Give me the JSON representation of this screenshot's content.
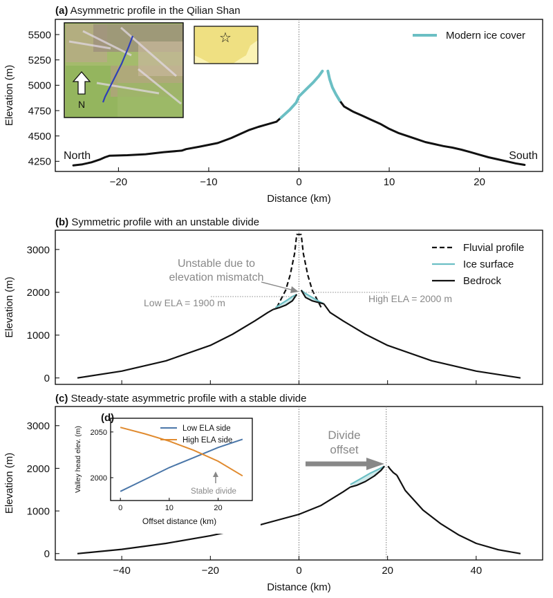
{
  "chart_data": [
    {
      "panel": "(a)",
      "title": "Asymmetric profile in the Qilian Shan",
      "type": "line",
      "xlabel": "Distance (km)",
      "ylabel": "Elevation (m)",
      "xlim": [
        -27,
        27
      ],
      "ylim": [
        4150,
        5650
      ],
      "xticks": [
        -20,
        -10,
        0,
        10,
        20
      ],
      "yticks": [
        4250,
        4500,
        4750,
        5000,
        5250,
        5500
      ],
      "annotations": [
        "North",
        "South"
      ],
      "inset_labels": [
        "N"
      ],
      "legend_position": "top-right",
      "series": [
        {
          "name": "",
          "color": "#111111",
          "x": [
            -25,
            -24,
            -23,
            -22,
            -21.5,
            -21,
            -19,
            -17,
            -15,
            -13,
            -12.5,
            -11,
            -9,
            -7.5,
            -6.5,
            -5.5,
            -4.5,
            -3.5,
            -2.5,
            -2
          ],
          "y": [
            4210,
            4220,
            4240,
            4270,
            4290,
            4305,
            4310,
            4320,
            4340,
            4355,
            4370,
            4395,
            4430,
            4480,
            4520,
            4560,
            4590,
            4615,
            4640,
            4680
          ]
        },
        {
          "name": "",
          "color": "#111111",
          "x": [
            4.5,
            5,
            6,
            7,
            8,
            9,
            10,
            11,
            12,
            13,
            14,
            15,
            16,
            17,
            18,
            19,
            20,
            21,
            22,
            23,
            24,
            25
          ],
          "y": [
            4850,
            4790,
            4740,
            4700,
            4660,
            4620,
            4570,
            4530,
            4500,
            4470,
            4440,
            4420,
            4400,
            4385,
            4365,
            4340,
            4315,
            4290,
            4270,
            4250,
            4230,
            4215
          ]
        },
        {
          "name": "Modern ice cover",
          "color": "#6bbfc4",
          "x": [
            -2,
            -1,
            -0.3,
            0,
            0.8,
            1.6,
            2.2,
            2.6
          ],
          "y": [
            4680,
            4760,
            4830,
            4890,
            4960,
            5030,
            5090,
            5140
          ]
        },
        {
          "name": "",
          "color": "#6bbfc4",
          "x": [
            3.2,
            3.4,
            3.7,
            4.1,
            4.5
          ],
          "y": [
            5140,
            5060,
            4980,
            4910,
            4850
          ]
        }
      ]
    },
    {
      "panel": "(b)",
      "title": "Symmetric profile with an unstable divide",
      "type": "line",
      "xlabel": "",
      "ylabel": "Elevation (m)",
      "xlim": [
        -55,
        55
      ],
      "ylim": [
        -150,
        3450
      ],
      "yticks": [
        0,
        1000,
        2000,
        3000
      ],
      "legend_position": "top-right",
      "annotations": [
        "Unstable due to elevation mismatch",
        "Low ELA = 1900 m",
        "High ELA = 2000 m"
      ],
      "series": [
        {
          "name": "Fluvial profile",
          "color": "#111111",
          "dash": "dashed",
          "x": [
            -5,
            -3,
            -2,
            -1,
            -0.5,
            0.5,
            1,
            2,
            3,
            5
          ],
          "y": [
            1650,
            2050,
            2400,
            2900,
            3350,
            3350,
            2900,
            2400,
            2050,
            1650
          ]
        },
        {
          "name": "Ice surface",
          "color": "#6bbfc4",
          "x": [
            -5.3,
            -4,
            -2.5,
            -1.5,
            -0.5
          ],
          "y": [
            1640,
            1730,
            1830,
            1900,
            1950
          ]
        },
        {
          "name": "",
          "color": "#6bbfc4",
          "x": [
            0.5,
            1.5,
            3,
            4.5,
            5.6
          ],
          "y": [
            2050,
            1970,
            1880,
            1790,
            1730
          ]
        },
        {
          "name": "Bedrock",
          "color": "#111111",
          "x": [
            -50,
            -40,
            -30,
            -20,
            -15,
            -10,
            -7,
            -5.8
          ],
          "y": [
            0,
            160,
            400,
            760,
            1020,
            1330,
            1530,
            1600
          ]
        },
        {
          "name": "",
          "color": "#111111",
          "x": [
            -5.8,
            -4.5,
            -3,
            -1.5,
            -0.5
          ],
          "y": [
            1600,
            1640,
            1700,
            1800,
            1950
          ]
        },
        {
          "name": "",
          "color": "#111111",
          "x": [
            0.5,
            1.5,
            3,
            4.5,
            5.6
          ],
          "y": [
            2050,
            1880,
            1800,
            1760,
            1730
          ]
        },
        {
          "name": "",
          "color": "#111111",
          "x": [
            5.6,
            7,
            10,
            15,
            20,
            30,
            40,
            50
          ],
          "y": [
            1730,
            1530,
            1330,
            1020,
            760,
            400,
            160,
            0
          ]
        }
      ]
    },
    {
      "panel": "(c)",
      "title": "Steady-state asymmetric profile with a stable divide",
      "type": "line",
      "xlabel": "Distance (km)",
      "ylabel": "Elevation (m)",
      "xlim": [
        -55,
        55
      ],
      "ylim": [
        -150,
        3450
      ],
      "xticks": [
        -40,
        -20,
        0,
        20,
        40
      ],
      "yticks": [
        0,
        1000,
        2000,
        3000
      ],
      "annotations": [
        "Divide offset"
      ],
      "series": [
        {
          "name": "",
          "color": "#6bbfc4",
          "x": [
            11.6,
            14,
            16,
            18,
            19.3
          ],
          "y": [
            1620,
            1760,
            1880,
            1980,
            2050
          ]
        },
        {
          "name": "",
          "color": "#111111",
          "x": [
            -50,
            -40,
            -30,
            -20,
            -10,
            0,
            5,
            10,
            11.6
          ],
          "y": [
            0,
            100,
            240,
            420,
            640,
            920,
            1130,
            1450,
            1560
          ]
        },
        {
          "name": "",
          "color": "#111111",
          "x": [
            11.6,
            13,
            15,
            17,
            18.5,
            19.3
          ],
          "y": [
            1560,
            1600,
            1690,
            1820,
            1950,
            2050
          ]
        },
        {
          "name": "",
          "color": "#111111",
          "x": [
            20.1,
            20.6,
            21.3,
            22.1
          ],
          "y": [
            2050,
            1980,
            1900,
            1840
          ]
        },
        {
          "name": "",
          "color": "#111111",
          "x": [
            22.1,
            24,
            28,
            32,
            36,
            40,
            45,
            50
          ],
          "y": [
            1840,
            1480,
            1020,
            700,
            440,
            240,
            90,
            0
          ]
        }
      ]
    },
    {
      "panel": "(d)",
      "type": "line",
      "xlabel": "Offset distance (km)",
      "ylabel": "Valley head elev. (m)",
      "xlim": [
        -2,
        27
      ],
      "ylim": [
        1975,
        2065
      ],
      "xticks": [
        0,
        10,
        20
      ],
      "yticks": [
        2000,
        2050
      ],
      "legend_position": "top-right",
      "annotations": [
        "Stable divide"
      ],
      "series": [
        {
          "name": "Low ELA side",
          "color": "#4a76a8",
          "x": [
            0,
            5,
            10,
            15,
            20,
            25
          ],
          "y": [
            1985,
            1998,
            2011,
            2022,
            2033,
            2042
          ]
        },
        {
          "name": "High ELA side",
          "color": "#e08a2e",
          "x": [
            0,
            5,
            10,
            15,
            20,
            25
          ],
          "y": [
            2055,
            2048,
            2040,
            2030,
            2018,
            2002
          ]
        }
      ]
    }
  ]
}
